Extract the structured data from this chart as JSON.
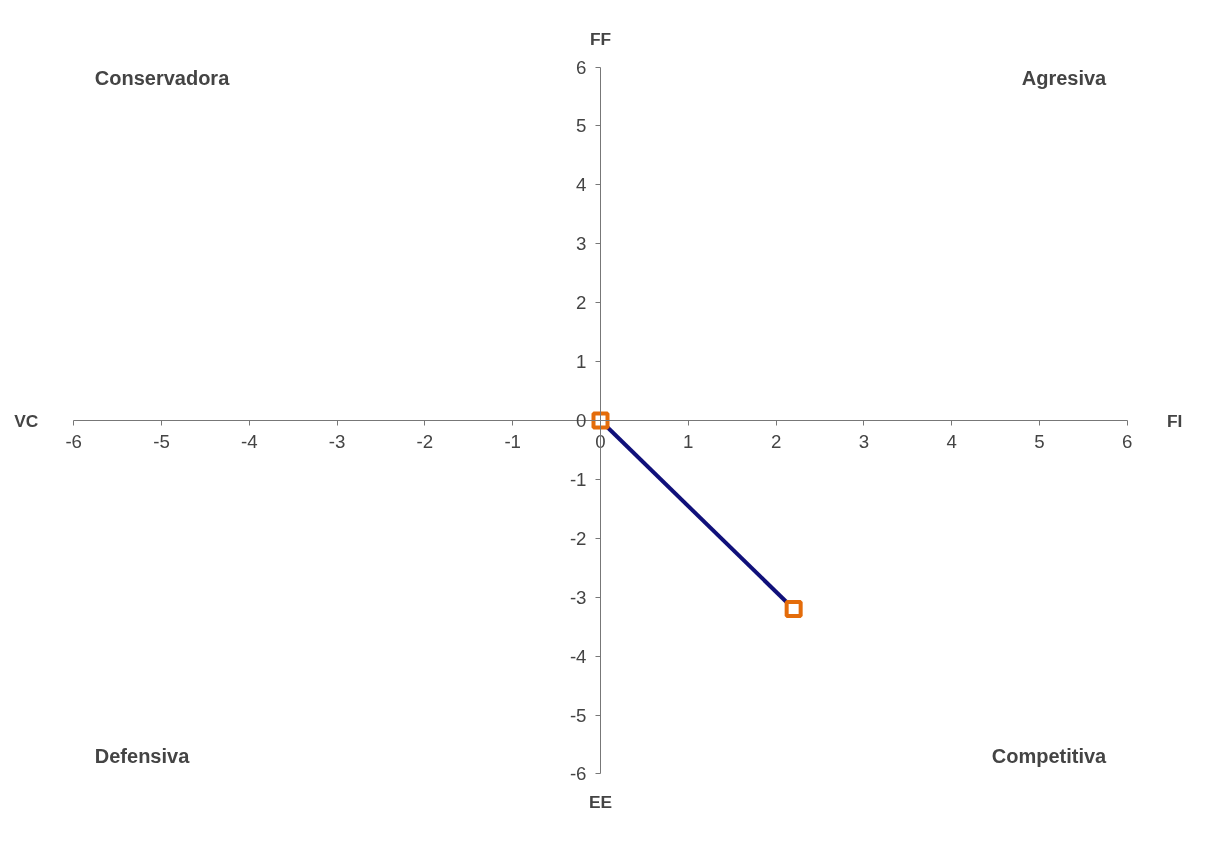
{
  "chart_data": {
    "type": "line",
    "xlabel": "FI",
    "ylabel": "FF",
    "annotations": [
      "VC",
      "EE",
      "Conservadora",
      "Agresiva",
      "Defensiva",
      "Competitiva"
    ],
    "x": [
      0,
      2.2
    ],
    "series": [
      {
        "color": "#10107a",
        "colors": [
          "#e46c0a",
          "#e46c0a"
        ],
        "values": [
          0,
          -3.2
        ]
      }
    ],
    "xlim": [
      -6,
      6
    ],
    "ylim": [
      -6,
      6
    ],
    "xticks": [
      -6,
      -5,
      -4,
      -3,
      -2,
      -1,
      0,
      1,
      2,
      3,
      4,
      5,
      6
    ],
    "yticks": [
      -6,
      -5,
      -4,
      -3,
      -2,
      -1,
      0,
      1,
      2,
      3,
      4,
      5,
      6
    ],
    "grid": false,
    "marker": "square",
    "line_style": "solid"
  }
}
